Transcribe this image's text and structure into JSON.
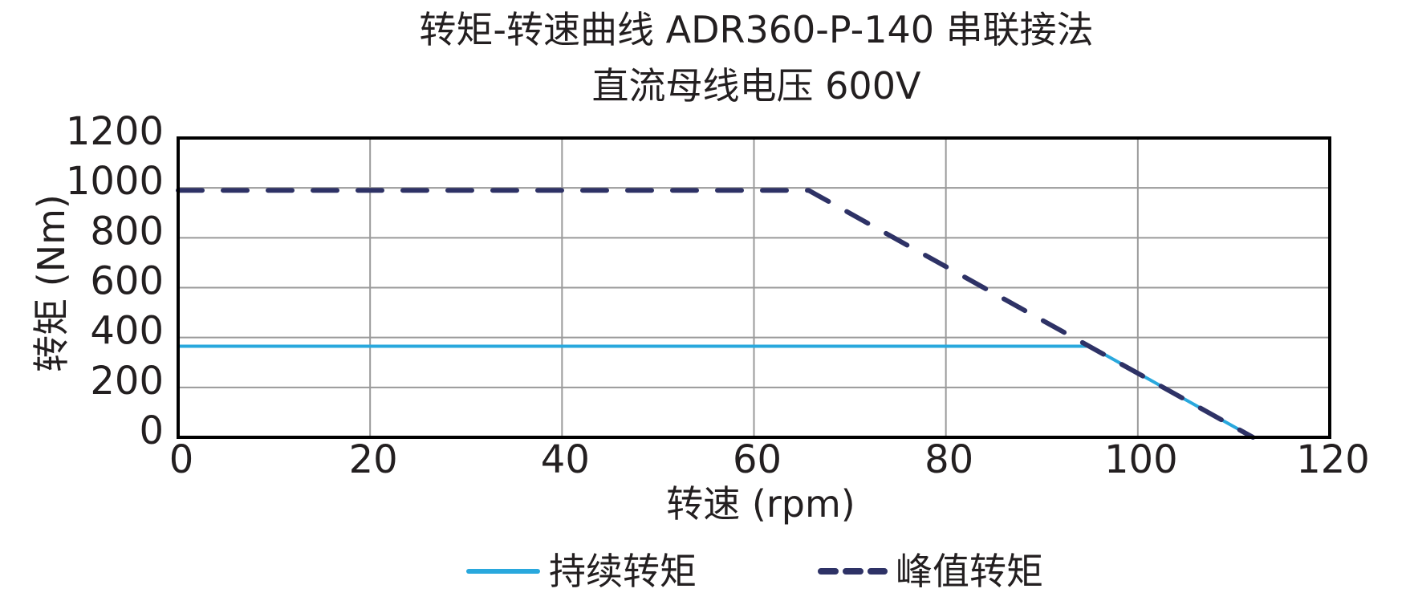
{
  "title": {
    "line1": "转矩-转速曲线 ADR360-P-140 串联接法",
    "line2": "直流母线电压 600V"
  },
  "axes": {
    "xlabel": "转速 (rpm)",
    "ylabel": "转矩 (Nm)"
  },
  "legend": {
    "items": [
      {
        "label": "持续转矩",
        "style": "solid",
        "color": "#29a8dd"
      },
      {
        "label": "峰值转矩",
        "style": "dashed",
        "color": "#2e3266"
      }
    ]
  },
  "chart_data": {
    "type": "line",
    "title": "转矩-转速曲线 ADR360-P-140 串联接法 / 直流母线电压 600V",
    "xlabel": "转速 (rpm)",
    "ylabel": "转矩 (Nm)",
    "xlim": [
      0,
      120
    ],
    "ylim": [
      0,
      1200
    ],
    "xticks": [
      0,
      20,
      40,
      60,
      80,
      100,
      120
    ],
    "yticks": [
      0,
      200,
      400,
      600,
      800,
      1000,
      1200
    ],
    "grid": true,
    "legend_position": "bottom",
    "series": [
      {
        "name": "持续转矩",
        "style": "solid",
        "color": "#29a8dd",
        "x": [
          0,
          95,
          112
        ],
        "y": [
          365,
          365,
          0
        ]
      },
      {
        "name": "峰值转矩",
        "style": "dashed",
        "color": "#2e3266",
        "x": [
          0,
          65.7,
          112
        ],
        "y": [
          990,
          990,
          0
        ]
      }
    ]
  }
}
